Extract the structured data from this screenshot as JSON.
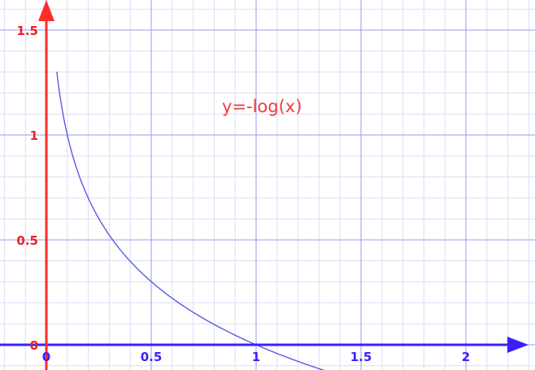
{
  "chart_data": {
    "type": "line",
    "annotation": "y=-log(x)",
    "x_ticks": [
      "0",
      "0.5",
      "1",
      "1.5",
      "2"
    ],
    "y_ticks": [
      "0",
      "0.5",
      "1",
      "1.5"
    ],
    "xlim": [
      -0.22,
      2.32
    ],
    "ylim": [
      -0.12,
      1.63
    ],
    "grid": true,
    "series": [
      {
        "x": [
          0.05,
          0.06,
          0.08,
          0.1,
          0.125,
          0.15,
          0.2,
          0.25,
          0.3,
          0.35,
          0.4,
          0.5,
          0.6,
          0.7,
          0.8,
          0.9,
          1.0,
          1.1,
          1.2,
          1.3,
          1.35
        ],
        "y": [
          1.301,
          1.222,
          1.097,
          1.0,
          0.903,
          0.824,
          0.699,
          0.602,
          0.523,
          0.456,
          0.398,
          0.301,
          0.222,
          0.155,
          0.097,
          0.046,
          0.0,
          -0.041,
          -0.079,
          -0.114,
          -0.13
        ]
      }
    ],
    "colors": {
      "curve": "#5050e0",
      "x_axis": "#3a1fff",
      "y_axis": "#ff2a2a",
      "x_tick_text": "#3a1fff",
      "y_tick_text": "#e8202a",
      "annotation": "#f03c3c",
      "grid_major": "#9a9af0",
      "grid_minor": "#dcdcfa"
    }
  }
}
